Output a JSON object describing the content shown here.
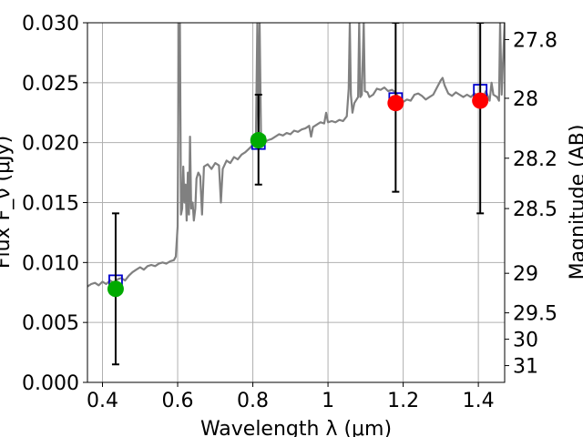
{
  "chart_data": {
    "type": "line",
    "xlabel": "Wavelength  λ (μm)",
    "ylabel": "Flux F_ν (μJy)",
    "ylabel_right": "Magnitude (AB)",
    "xlim": [
      0.36,
      1.47
    ],
    "ylim": [
      0,
      0.03
    ],
    "grid": true,
    "x_ticks": [
      0.4,
      0.6,
      0.8,
      1.0,
      1.2,
      1.4
    ],
    "x_tick_labels": [
      "0.4",
      "0.6",
      "0.8",
      "1",
      "1.2",
      "1.4"
    ],
    "y_ticks": [
      0,
      0.005,
      0.01,
      0.015,
      0.02,
      0.025,
      0.03
    ],
    "y_tick_labels": [
      "0.000",
      "0.005",
      "0.010",
      "0.015",
      "0.020",
      "0.025",
      "0.030"
    ],
    "mag_ticks": [
      {
        "flux": 0.0286,
        "label": "27.8"
      },
      {
        "flux": 0.0237,
        "label": "28"
      },
      {
        "flux": 0.0187,
        "label": "28.2"
      },
      {
        "flux": 0.0145,
        "label": "28.5"
      },
      {
        "flux": 0.0091,
        "label": "29"
      },
      {
        "flux": 0.0058,
        "label": "29.5"
      },
      {
        "flux": 0.0036,
        "label": "30"
      },
      {
        "flux": 0.0014,
        "label": "31"
      }
    ],
    "spectrum": {
      "color": "#808080",
      "points": [
        [
          0.36,
          0.008
        ],
        [
          0.37,
          0.0082
        ],
        [
          0.38,
          0.0083
        ],
        [
          0.39,
          0.0081
        ],
        [
          0.4,
          0.0084
        ],
        [
          0.41,
          0.0082
        ],
        [
          0.42,
          0.0085
        ],
        [
          0.43,
          0.0083
        ],
        [
          0.44,
          0.0086
        ],
        [
          0.45,
          0.0087
        ],
        [
          0.46,
          0.0085
        ],
        [
          0.47,
          0.0089
        ],
        [
          0.48,
          0.0092
        ],
        [
          0.49,
          0.0094
        ],
        [
          0.5,
          0.0096
        ],
        [
          0.51,
          0.0094
        ],
        [
          0.52,
          0.0097
        ],
        [
          0.53,
          0.0098
        ],
        [
          0.54,
          0.0097
        ],
        [
          0.55,
          0.0099
        ],
        [
          0.56,
          0.01
        ],
        [
          0.57,
          0.0099
        ],
        [
          0.58,
          0.0101
        ],
        [
          0.59,
          0.0102
        ],
        [
          0.595,
          0.0105
        ],
        [
          0.6,
          0.013
        ],
        [
          0.603,
          0.03
        ],
        [
          0.606,
          0.03
        ],
        [
          0.609,
          0.014
        ],
        [
          0.612,
          0.0145
        ],
        [
          0.615,
          0.018
        ],
        [
          0.618,
          0.015
        ],
        [
          0.621,
          0.0165
        ],
        [
          0.624,
          0.0135
        ],
        [
          0.627,
          0.0175
        ],
        [
          0.63,
          0.014
        ],
        [
          0.633,
          0.0205
        ],
        [
          0.636,
          0.0145
        ],
        [
          0.64,
          0.015
        ],
        [
          0.643,
          0.0135
        ],
        [
          0.647,
          0.0145
        ],
        [
          0.65,
          0.017
        ],
        [
          0.655,
          0.0175
        ],
        [
          0.66,
          0.0172
        ],
        [
          0.665,
          0.014
        ],
        [
          0.67,
          0.018
        ],
        [
          0.68,
          0.0182
        ],
        [
          0.69,
          0.0178
        ],
        [
          0.7,
          0.0183
        ],
        [
          0.705,
          0.0182
        ],
        [
          0.71,
          0.0181
        ],
        [
          0.715,
          0.015
        ],
        [
          0.72,
          0.0178
        ],
        [
          0.73,
          0.0185
        ],
        [
          0.74,
          0.0183
        ],
        [
          0.75,
          0.0188
        ],
        [
          0.76,
          0.0186
        ],
        [
          0.77,
          0.019
        ],
        [
          0.78,
          0.0192
        ],
        [
          0.79,
          0.0195
        ],
        [
          0.8,
          0.0198
        ],
        [
          0.808,
          0.02
        ],
        [
          0.812,
          0.03
        ],
        [
          0.815,
          0.0205
        ],
        [
          0.818,
          0.03
        ],
        [
          0.822,
          0.0201
        ],
        [
          0.83,
          0.02
        ],
        [
          0.84,
          0.0202
        ],
        [
          0.85,
          0.0203
        ],
        [
          0.86,
          0.0205
        ],
        [
          0.87,
          0.0207
        ],
        [
          0.88,
          0.0206
        ],
        [
          0.89,
          0.0208
        ],
        [
          0.9,
          0.0207
        ],
        [
          0.91,
          0.021
        ],
        [
          0.92,
          0.0209
        ],
        [
          0.93,
          0.0211
        ],
        [
          0.94,
          0.0212
        ],
        [
          0.95,
          0.0214
        ],
        [
          0.955,
          0.0205
        ],
        [
          0.96,
          0.0213
        ],
        [
          0.97,
          0.0215
        ],
        [
          0.98,
          0.0217
        ],
        [
          0.99,
          0.0216
        ],
        [
          0.995,
          0.0225
        ],
        [
          1.0,
          0.0217
        ],
        [
          1.01,
          0.0218
        ],
        [
          1.02,
          0.0217
        ],
        [
          1.03,
          0.0219
        ],
        [
          1.04,
          0.0218
        ],
        [
          1.05,
          0.0222
        ],
        [
          1.055,
          0.0245
        ],
        [
          1.058,
          0.03
        ],
        [
          1.061,
          0.024
        ],
        [
          1.065,
          0.0225
        ],
        [
          1.07,
          0.0233
        ],
        [
          1.08,
          0.0238
        ],
        [
          1.083,
          0.03
        ],
        [
          1.086,
          0.0238
        ],
        [
          1.09,
          0.024
        ],
        [
          1.095,
          0.03
        ],
        [
          1.098,
          0.0243
        ],
        [
          1.105,
          0.0242
        ],
        [
          1.11,
          0.0238
        ],
        [
          1.12,
          0.024
        ],
        [
          1.13,
          0.0245
        ],
        [
          1.14,
          0.0244
        ],
        [
          1.15,
          0.0246
        ],
        [
          1.16,
          0.0243
        ],
        [
          1.17,
          0.0244
        ],
        [
          1.18,
          0.0242
        ],
        [
          1.19,
          0.0236
        ],
        [
          1.2,
          0.0234
        ],
        [
          1.21,
          0.0236
        ],
        [
          1.22,
          0.0235
        ],
        [
          1.23,
          0.024
        ],
        [
          1.24,
          0.0241
        ],
        [
          1.25,
          0.0239
        ],
        [
          1.26,
          0.0236
        ],
        [
          1.27,
          0.0238
        ],
        [
          1.28,
          0.024
        ],
        [
          1.29,
          0.0246
        ],
        [
          1.3,
          0.0252
        ],
        [
          1.305,
          0.0254
        ],
        [
          1.31,
          0.0248
        ],
        [
          1.32,
          0.0241
        ],
        [
          1.33,
          0.0239
        ],
        [
          1.34,
          0.0242
        ],
        [
          1.35,
          0.024
        ],
        [
          1.36,
          0.0238
        ],
        [
          1.37,
          0.024
        ],
        [
          1.38,
          0.0238
        ],
        [
          1.39,
          0.0241
        ],
        [
          1.4,
          0.0239
        ],
        [
          1.41,
          0.0236
        ],
        [
          1.42,
          0.0243
        ],
        [
          1.43,
          0.0235
        ],
        [
          1.435,
          0.025
        ],
        [
          1.44,
          0.024
        ],
        [
          1.45,
          0.0238
        ],
        [
          1.455,
          0.0235
        ],
        [
          1.458,
          0.03
        ],
        [
          1.462,
          0.024
        ],
        [
          1.47,
          0.03
        ]
      ]
    },
    "box_points": {
      "color": "#0000cc",
      "points": [
        {
          "x": 0.435,
          "y": 0.0084
        },
        {
          "x": 0.815,
          "y": 0.02
        },
        {
          "x": 1.18,
          "y": 0.0236
        },
        {
          "x": 1.405,
          "y": 0.0243
        }
      ]
    },
    "photometry": [
      {
        "x": 0.435,
        "y": 0.0078,
        "yerr_low": 0.0015,
        "yerr_high": 0.0141,
        "color": "#00aa00"
      },
      {
        "x": 0.815,
        "y": 0.0202,
        "yerr_low": 0.0165,
        "yerr_high": 0.024,
        "color": "#00aa00"
      },
      {
        "x": 1.18,
        "y": 0.0233,
        "yerr_low": 0.0159,
        "yerr_high": 0.03,
        "color": "#ff0000"
      },
      {
        "x": 1.405,
        "y": 0.0235,
        "yerr_low": 0.0141,
        "yerr_high": 0.03,
        "color": "#ff0000"
      }
    ]
  }
}
